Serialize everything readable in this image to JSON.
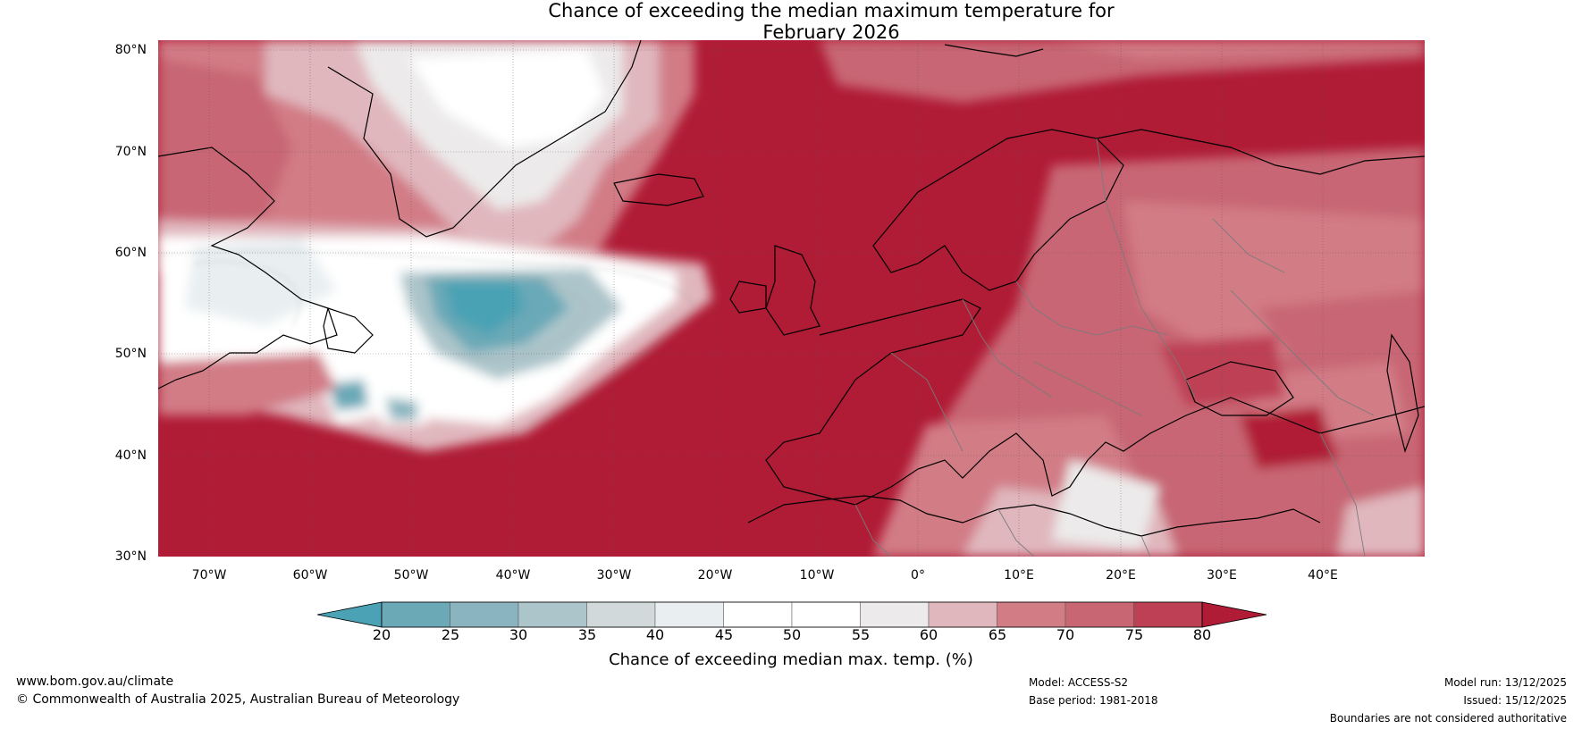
{
  "title": {
    "line1": "Chance of exceeding the median maximum temperature for",
    "line2": "February 2026"
  },
  "map": {
    "lat_labels": [
      "80°N",
      "70°N",
      "60°N",
      "50°N",
      "40°N",
      "30°N"
    ],
    "lon_labels": [
      "70°W",
      "60°W",
      "50°W",
      "40°W",
      "30°W",
      "20°W",
      "10°W",
      "0°",
      "10°E",
      "20°E",
      "30°E",
      "40°E"
    ],
    "lat_range": [
      30,
      81
    ],
    "lon_range": [
      -75,
      50
    ]
  },
  "colorbar": {
    "ticks": [
      "20",
      "25",
      "30",
      "35",
      "40",
      "45",
      "50",
      "55",
      "60",
      "65",
      "70",
      "75",
      "80"
    ],
    "colors": [
      "#4aa2b4",
      "#6ba9b7",
      "#8ab5c0",
      "#acc5ca",
      "#d2d9db",
      "#e9eff1",
      "#ffffff",
      "#ffffff",
      "#eceaea",
      "#e0b7bd",
      "#d27c86",
      "#c86674",
      "#be4054",
      "#b01b35"
    ],
    "label": "Chance of exceeding median max. temp. (%)"
  },
  "footer": {
    "website": "www.bom.gov.au/climate",
    "copyright": "© Commonwealth of Australia 2025, Australian Bureau of Meteorology",
    "model": "Model: ACCESS-S2",
    "base_period": "Base period: 1981-2018",
    "model_run": "Model run: 13/12/2025",
    "issued": "Issued: 15/12/2025",
    "disclaimer": "Boundaries are not considered authoritative"
  }
}
